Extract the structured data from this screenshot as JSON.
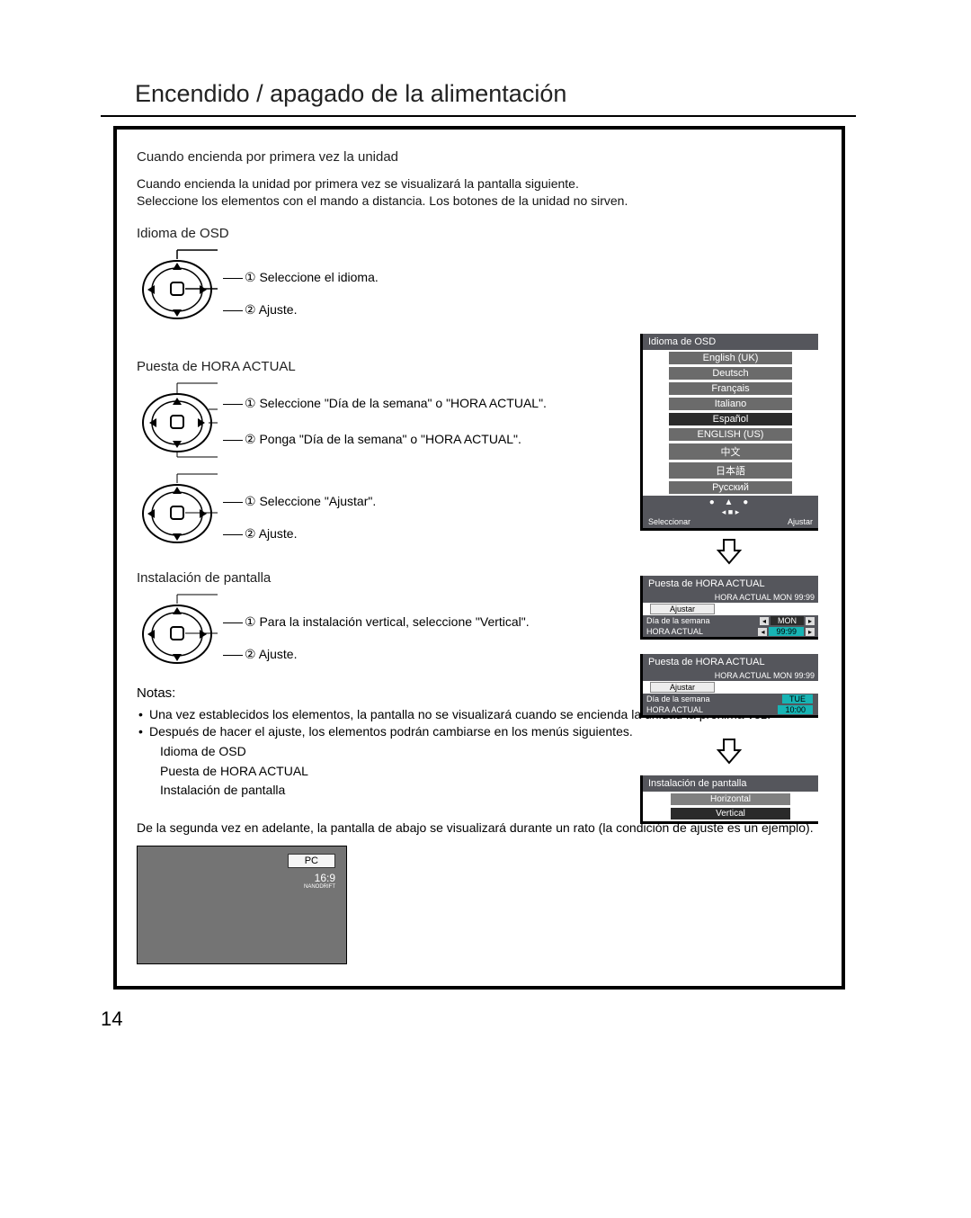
{
  "page": {
    "title": "Encendido / apagado de la alimentación",
    "number": "14"
  },
  "intro": {
    "heading": "Cuando encienda por primera vez la unidad",
    "line1": "Cuando encienda la unidad por primera vez se visualizará la pantalla siguiente.",
    "line2": "Seleccione los elementos con el mando a distancia. Los botones de la unidad no sirven."
  },
  "idioma": {
    "title": "Idioma de OSD",
    "step1": "Seleccione el idioma.",
    "step2": "Ajuste."
  },
  "hora": {
    "title": "Puesta de HORA ACTUAL",
    "step1": "Seleccione \"Día de la semana\" o \"HORA ACTUAL\".",
    "step2": "Ponga \"Día de la semana\" o \"HORA ACTUAL\".",
    "step3": "Seleccione \"Ajustar\".",
    "step4": "Ajuste."
  },
  "inst": {
    "title": "Instalación de pantalla",
    "step1": "Para la instalación vertical, seleccione \"Vertical\".",
    "step2": "Ajuste."
  },
  "notes": {
    "title": "Notas:",
    "n1": "Una vez establecidos los elementos, la pantalla no se visualizará cuando se encienda la unidad la próxima vez.",
    "n2": "Después de hacer el ajuste, los elementos podrán cambiarse en los menús siguientes.",
    "sub1": "Idioma de OSD",
    "sub2": "Puesta de HORA ACTUAL",
    "sub3": "Instalación de pantalla"
  },
  "second": "De la segunda vez en adelante, la pantalla de abajo se visualizará durante un rato (la condición de ajuste es un ejemplo).",
  "tv": {
    "source": "PC",
    "ratio": "16:9",
    "tech": "NANODRIFT"
  },
  "osdLang": {
    "title": "Idioma de OSD",
    "options": [
      "English (UK)",
      "Deutsch",
      "Français",
      "Italiano",
      "Español",
      "ENGLISH (US)",
      "中文",
      "日本語",
      "Русский"
    ],
    "selected_index": 4,
    "footer_left": "Seleccionar",
    "footer_right": "Ajustar",
    "colors": {
      "panel": "#55565c",
      "option": "#6b6b6b",
      "selected": "#2c2c2c",
      "text": "#ffffff"
    }
  },
  "osdHora1": {
    "title": "Puesta de HORA  ACTUAL",
    "strip": "HORA ACTUAL   MON  99:99",
    "ajustar": "Ajustar",
    "row1_label": "Día de la semana",
    "row1_val": "MON",
    "row2_label": "HORA ACTUAL",
    "row2_val": "99:99",
    "highlight_color": "#17b4b4"
  },
  "osdHora2": {
    "title": "Puesta de HORA  ACTUAL",
    "strip": "HORA ACTUAL   MON  99:99",
    "ajustar": "Ajustar",
    "row1_label": "Día de la semana",
    "row1_val": "TUE",
    "row2_label": "HORA ACTUAL",
    "row2_val": "10:00"
  },
  "osdInst": {
    "title": "Instalación de pantalla",
    "opt1": "Horizontal",
    "opt2": "Vertical"
  },
  "circled": {
    "one": "①",
    "two": "②"
  }
}
